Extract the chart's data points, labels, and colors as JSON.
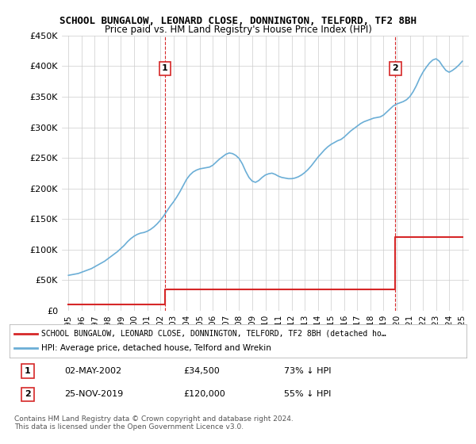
{
  "title": "SCHOOL BUNGALOW, LEONARD CLOSE, DONNINGTON, TELFORD, TF2 8BH",
  "subtitle": "Price paid vs. HM Land Registry's House Price Index (HPI)",
  "hpi_color": "#6baed6",
  "price_color": "#d62728",
  "marker_color": "#d62728",
  "background_color": "#ffffff",
  "grid_color": "#cccccc",
  "annotation_line_color": "#d62728",
  "ylim": [
    0,
    450000
  ],
  "yticks": [
    0,
    50000,
    100000,
    150000,
    200000,
    250000,
    300000,
    350000,
    400000,
    450000
  ],
  "ytick_labels": [
    "£0",
    "£50K",
    "£100K",
    "£150K",
    "£200K",
    "£250K",
    "£300K",
    "£350K",
    "£400K",
    "£450K"
  ],
  "xlim_start": 1994.5,
  "xlim_end": 2025.5,
  "xticks": [
    1995,
    1996,
    1997,
    1998,
    1999,
    2000,
    2001,
    2002,
    2003,
    2004,
    2005,
    2006,
    2007,
    2008,
    2009,
    2010,
    2011,
    2012,
    2013,
    2014,
    2015,
    2016,
    2017,
    2018,
    2019,
    2020,
    2021,
    2022,
    2023,
    2024,
    2025
  ],
  "purchase1_x": 2002.35,
  "purchase1_y": 34500,
  "purchase2_x": 2019.9,
  "purchase2_y": 120000,
  "hpi_x": [
    1995.0,
    1995.25,
    1995.5,
    1995.75,
    1996.0,
    1996.25,
    1996.5,
    1996.75,
    1997.0,
    1997.25,
    1997.5,
    1997.75,
    1998.0,
    1998.25,
    1998.5,
    1998.75,
    1999.0,
    1999.25,
    1999.5,
    1999.75,
    2000.0,
    2000.25,
    2000.5,
    2000.75,
    2001.0,
    2001.25,
    2001.5,
    2001.75,
    2002.0,
    2002.25,
    2002.5,
    2002.75,
    2003.0,
    2003.25,
    2003.5,
    2003.75,
    2004.0,
    2004.25,
    2004.5,
    2004.75,
    2005.0,
    2005.25,
    2005.5,
    2005.75,
    2006.0,
    2006.25,
    2006.5,
    2006.75,
    2007.0,
    2007.25,
    2007.5,
    2007.75,
    2008.0,
    2008.25,
    2008.5,
    2008.75,
    2009.0,
    2009.25,
    2009.5,
    2009.75,
    2010.0,
    2010.25,
    2010.5,
    2010.75,
    2011.0,
    2011.25,
    2011.5,
    2011.75,
    2012.0,
    2012.25,
    2012.5,
    2012.75,
    2013.0,
    2013.25,
    2013.5,
    2013.75,
    2014.0,
    2014.25,
    2014.5,
    2014.75,
    2015.0,
    2015.25,
    2015.5,
    2015.75,
    2016.0,
    2016.25,
    2016.5,
    2016.75,
    2017.0,
    2017.25,
    2017.5,
    2017.75,
    2018.0,
    2018.25,
    2018.5,
    2018.75,
    2019.0,
    2019.25,
    2019.5,
    2019.75,
    2020.0,
    2020.25,
    2020.5,
    2020.75,
    2021.0,
    2021.25,
    2021.5,
    2021.75,
    2022.0,
    2022.25,
    2022.5,
    2022.75,
    2023.0,
    2023.25,
    2023.5,
    2023.75,
    2024.0,
    2024.25,
    2024.5,
    2024.75,
    2025.0
  ],
  "hpi_y": [
    58000,
    59000,
    60000,
    61000,
    63000,
    65000,
    67000,
    69000,
    72000,
    75000,
    78000,
    81000,
    85000,
    89000,
    93000,
    97000,
    102000,
    107000,
    113000,
    118000,
    122000,
    125000,
    127000,
    128000,
    130000,
    133000,
    137000,
    142000,
    148000,
    155000,
    163000,
    171000,
    178000,
    186000,
    195000,
    205000,
    215000,
    222000,
    227000,
    230000,
    232000,
    233000,
    234000,
    235000,
    238000,
    243000,
    248000,
    252000,
    256000,
    258000,
    257000,
    254000,
    249000,
    240000,
    228000,
    218000,
    212000,
    210000,
    213000,
    218000,
    222000,
    224000,
    225000,
    223000,
    220000,
    218000,
    217000,
    216000,
    216000,
    217000,
    219000,
    222000,
    226000,
    231000,
    237000,
    244000,
    251000,
    257000,
    263000,
    268000,
    272000,
    275000,
    278000,
    280000,
    284000,
    289000,
    294000,
    298000,
    302000,
    306000,
    309000,
    311000,
    313000,
    315000,
    316000,
    317000,
    320000,
    325000,
    330000,
    335000,
    338000,
    340000,
    342000,
    345000,
    350000,
    358000,
    368000,
    380000,
    390000,
    398000,
    405000,
    410000,
    412000,
    408000,
    400000,
    393000,
    390000,
    393000,
    397000,
    402000,
    408000
  ],
  "price_x": [
    1995.0,
    2002.35,
    2002.35,
    2019.9,
    2019.9,
    2025.0
  ],
  "price_y": [
    10000,
    10000,
    34500,
    34500,
    120000,
    120000
  ],
  "legend_label_red": "SCHOOL BUNGALOW, LEONARD CLOSE, DONNINGTON, TELFORD, TF2 8BH (detached ho…",
  "legend_label_blue": "HPI: Average price, detached house, Telford and Wrekin",
  "annotation1_label": "1",
  "annotation1_date": "02-MAY-2002",
  "annotation1_price": "£34,500",
  "annotation1_hpi": "73% ↓ HPI",
  "annotation2_label": "2",
  "annotation2_date": "25-NOV-2019",
  "annotation2_price": "£120,000",
  "annotation2_hpi": "55% ↓ HPI",
  "footnote": "Contains HM Land Registry data © Crown copyright and database right 2024.\nThis data is licensed under the Open Government Licence v3.0."
}
